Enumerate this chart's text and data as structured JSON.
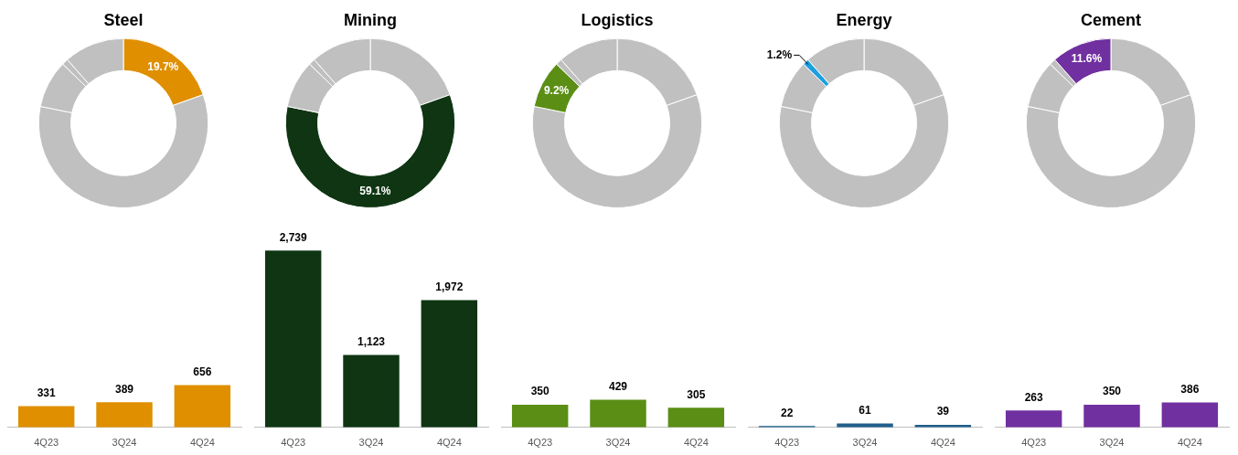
{
  "chart_data": [
    {
      "type": "donut",
      "title": "Steel",
      "categories": [
        null,
        null,
        null,
        null,
        null
      ],
      "values": [
        19.7,
        59.1,
        9.2,
        1.2,
        11.6
      ],
      "colors": [
        "#df8f00",
        "#c0c0c0",
        "#c0c0c0",
        "#c0c0c0",
        "#c0c0c0"
      ],
      "value_labels": [
        "19.7%",
        null,
        null,
        null,
        null
      ]
    },
    {
      "type": "donut",
      "title": "Mining",
      "categories": [
        null,
        null,
        null,
        null,
        null
      ],
      "values": [
        19.7,
        59.1,
        9.2,
        1.2,
        11.6
      ],
      "colors": [
        "#c0c0c0",
        "#0f3513",
        "#c0c0c0",
        "#c0c0c0",
        "#c0c0c0"
      ],
      "value_labels": [
        null,
        "59.1%",
        null,
        null,
        null
      ]
    },
    {
      "type": "donut",
      "title": "Logistics",
      "categories": [
        null,
        null,
        null,
        null,
        null
      ],
      "values": [
        19.7,
        59.1,
        9.2,
        1.2,
        11.6
      ],
      "colors": [
        "#c0c0c0",
        "#c0c0c0",
        "#5b8e15",
        "#c0c0c0",
        "#c0c0c0"
      ],
      "value_labels": [
        null,
        null,
        "9.2%",
        null,
        null
      ]
    },
    {
      "type": "donut",
      "title": "Energy",
      "categories": [
        null,
        null,
        null,
        null,
        null
      ],
      "values": [
        19.7,
        59.1,
        9.2,
        1.2,
        11.6
      ],
      "colors": [
        "#c0c0c0",
        "#c0c0c0",
        "#c0c0c0",
        "#1ba1e2",
        "#c0c0c0"
      ],
      "value_labels": [
        null,
        null,
        null,
        "1.2%",
        null
      ]
    },
    {
      "type": "donut",
      "title": "Cement",
      "categories": [
        null,
        null,
        null,
        null,
        null
      ],
      "values": [
        19.7,
        59.1,
        9.2,
        1.2,
        11.6
      ],
      "colors": [
        "#c0c0c0",
        "#c0c0c0",
        "#c0c0c0",
        "#c0c0c0",
        "#7030a0"
      ],
      "value_labels": [
        null,
        null,
        null,
        null,
        "11.6%"
      ]
    },
    {
      "type": "bar",
      "categories": [
        "4Q23",
        "3Q24",
        "4Q24"
      ],
      "values": [
        331,
        389,
        656
      ],
      "color": "#df8f00",
      "data_labels": true
    },
    {
      "type": "bar",
      "categories": [
        "4Q23",
        "3Q24",
        "4Q24"
      ],
      "values": [
        2739,
        1123,
        1972
      ],
      "color": "#0f3513",
      "value_labels": [
        "2,739",
        "1,123",
        "1,972"
      ]
    },
    {
      "type": "bar",
      "categories": [
        "4Q23",
        "3Q24",
        "4Q24"
      ],
      "values": [
        350,
        429,
        305
      ],
      "color": "#5b8e15",
      "data_labels": true
    },
    {
      "type": "bar",
      "categories": [
        "4Q23",
        "3Q24",
        "4Q24"
      ],
      "values": [
        22,
        61,
        39
      ],
      "color": "#1f5f8b",
      "data_labels": true
    },
    {
      "type": "bar",
      "categories": [
        "4Q23",
        "3Q24",
        "4Q24"
      ],
      "values": [
        263,
        350,
        386
      ],
      "color": "#7030a0",
      "data_labels": true
    }
  ]
}
